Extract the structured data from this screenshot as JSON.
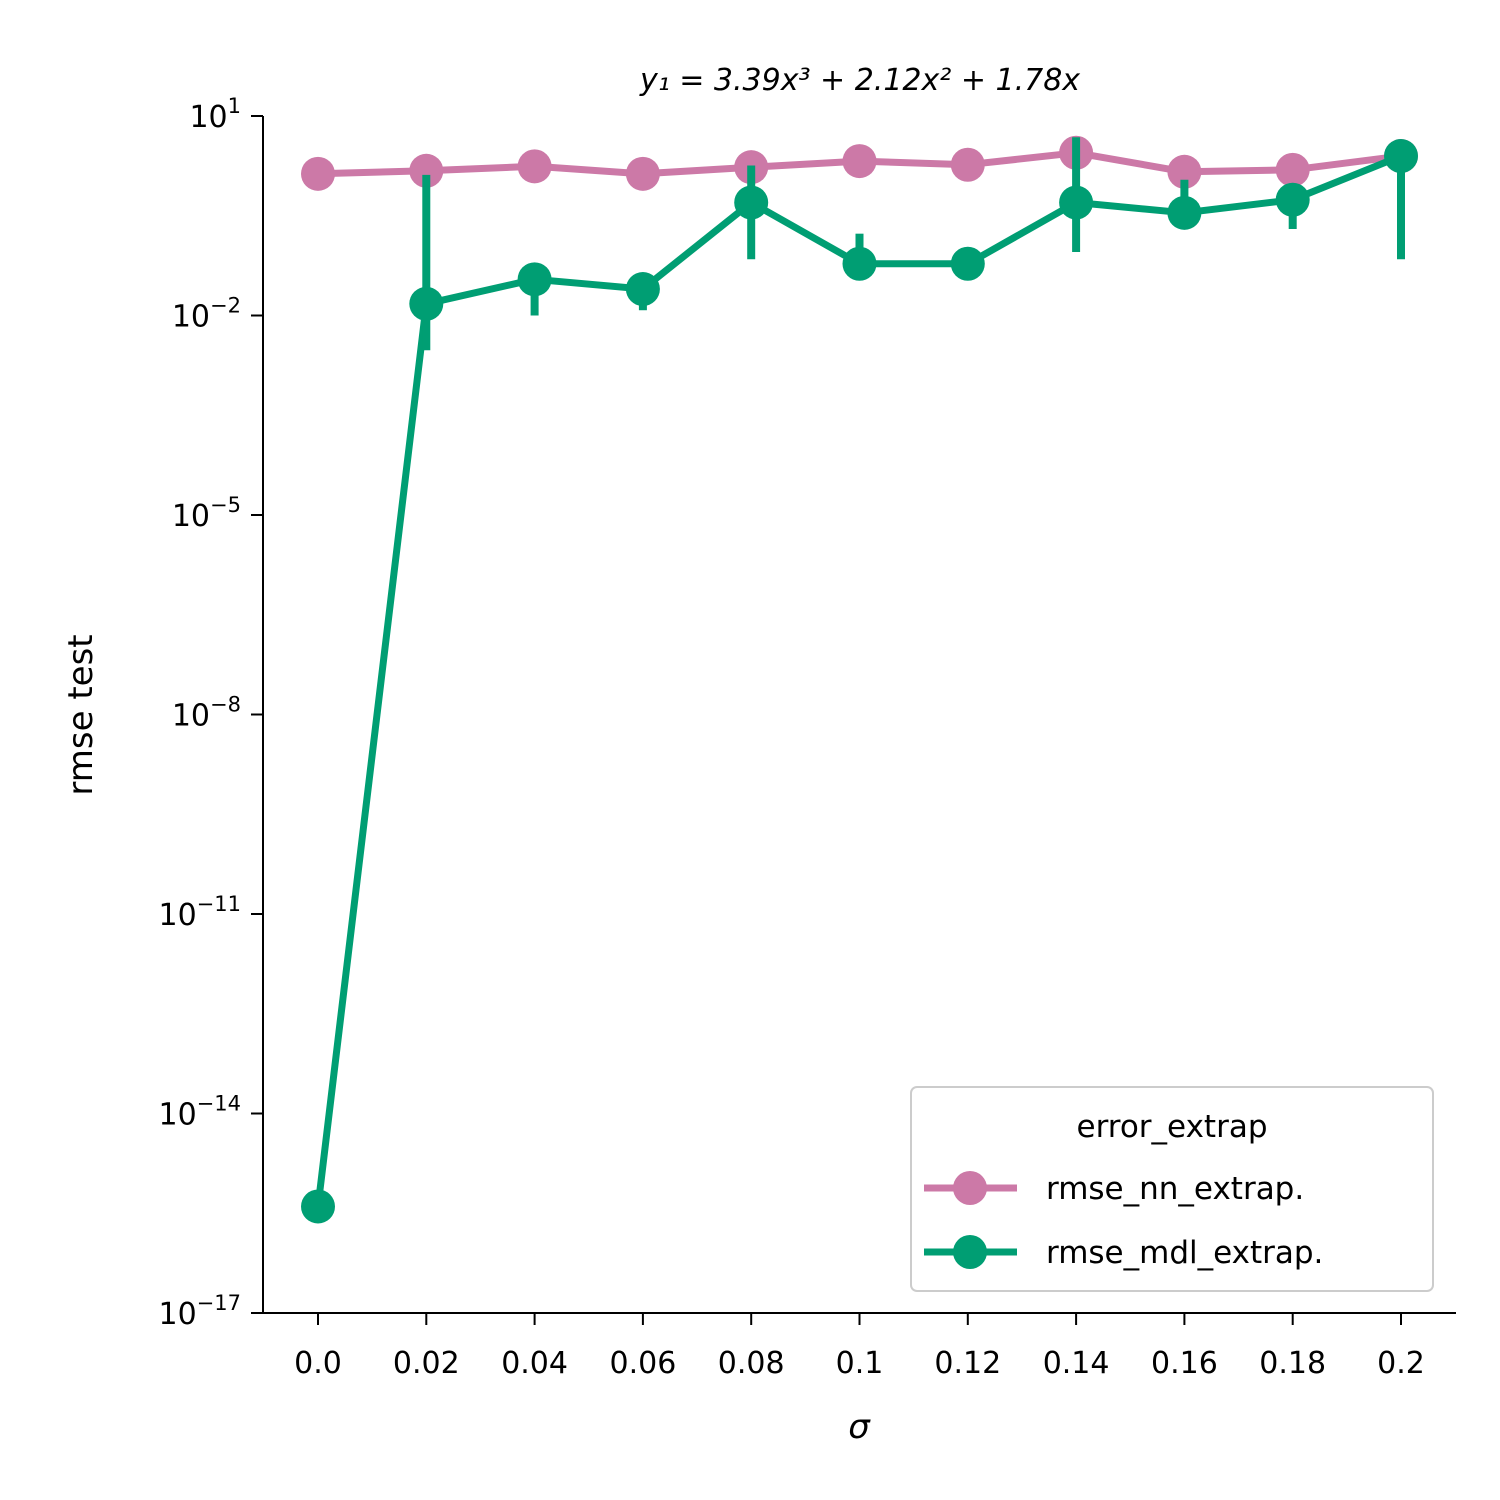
{
  "chart_data": {
    "type": "line",
    "title": "y₁ = 3.39x³ + 2.12x² + 1.78x",
    "xlabel": "σ",
    "ylabel": "rmse test",
    "yscale": "log",
    "ylim": [
      1e-17,
      10
    ],
    "grid": false,
    "legend_placement": "bottom-right",
    "legend_title": "error_extrap",
    "x_tick_labels": [
      "0.0",
      "0.02",
      "0.04",
      "0.06",
      "0.08",
      "0.1",
      "0.12",
      "0.14",
      "0.16",
      "0.18",
      "0.2"
    ],
    "y_ticks": [
      {
        "value": 1e-17,
        "base": "10",
        "exp": "−17"
      },
      {
        "value": 1e-14,
        "base": "10",
        "exp": "−14"
      },
      {
        "value": 1e-11,
        "base": "10",
        "exp": "−11"
      },
      {
        "value": 1e-08,
        "base": "10",
        "exp": "−8"
      },
      {
        "value": 1e-05,
        "base": "10",
        "exp": "−5"
      },
      {
        "value": 0.01,
        "base": "10",
        "exp": "−2"
      },
      {
        "value": 10,
        "base": "10",
        "exp": "1"
      }
    ],
    "series": [
      {
        "name": "rmse_nn_extrap.",
        "color": "#cc79a7",
        "values": [
          1.35,
          1.5,
          1.75,
          1.35,
          1.7,
          2.1,
          1.85,
          2.8,
          1.45,
          1.55,
          2.5
        ],
        "err_low": [
          null,
          null,
          1.2,
          null,
          null,
          null,
          null,
          null,
          null,
          null,
          null
        ],
        "err_high": [
          null,
          null,
          2.1,
          null,
          null,
          null,
          null,
          null,
          null,
          null,
          null
        ]
      },
      {
        "name": "rmse_mdl_extrap.",
        "color": "#009e73",
        "values": [
          4e-16,
          0.015,
          0.035,
          0.025,
          0.5,
          0.06,
          0.06,
          0.5,
          0.35,
          0.55,
          2.5
        ],
        "err_low": [
          null,
          0.003,
          0.01,
          0.012,
          0.07,
          null,
          null,
          0.09,
          null,
          0.2,
          0.07
        ],
        "err_high": [
          null,
          1.3,
          0.06,
          null,
          1.8,
          0.17,
          null,
          4.8,
          1.1,
          0.8,
          null
        ]
      }
    ]
  }
}
